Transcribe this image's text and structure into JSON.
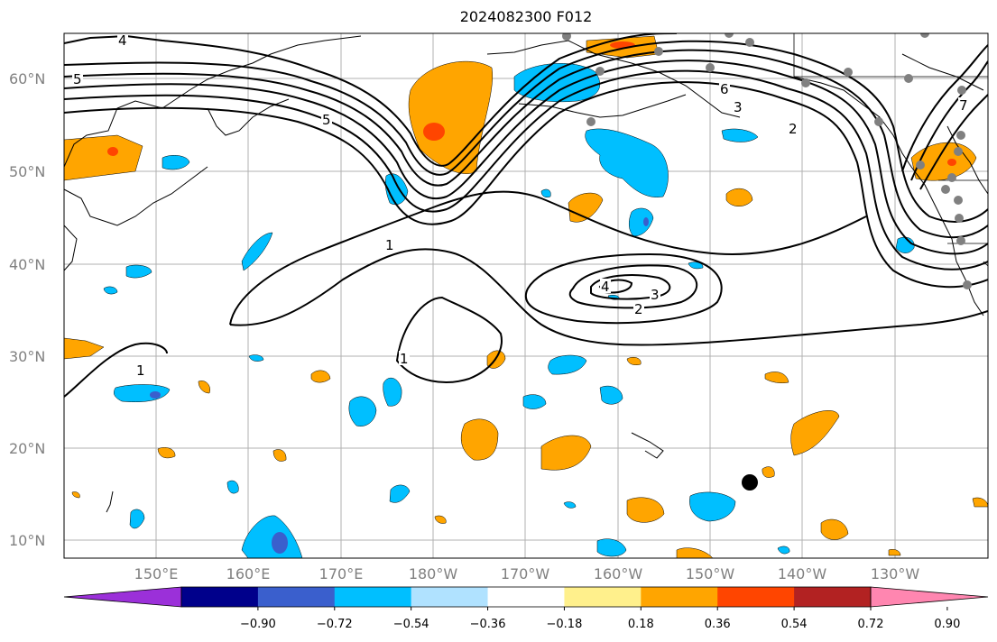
{
  "title": "2024082300 F012",
  "latitude_labels": [
    "60°N",
    "50°N",
    "40°N",
    "30°N",
    "20°N",
    "10°N"
  ],
  "longitude_labels": [
    "150°E",
    "160°E",
    "170°E",
    "180°W",
    "170°W",
    "160°W",
    "150°W",
    "140°W",
    "130°W"
  ],
  "contour_labels": [
    "1",
    "1",
    "1",
    "2",
    "2",
    "3",
    "3",
    "4",
    "4",
    "5",
    "5",
    "6",
    "7"
  ],
  "colorbar": {
    "ticks": [
      "−0.90",
      "−0.72",
      "−0.54",
      "−0.36",
      "−0.18",
      "0.18",
      "0.36",
      "0.54",
      "0.72",
      "0.90"
    ],
    "colors": [
      "#9b30d9",
      "#00008b",
      "#3a5fcd",
      "#00bfff",
      "#b0e2ff",
      "#ffffff",
      "#fff08c",
      "#ffa500",
      "#ff4500",
      "#b22222",
      "#ff86b0"
    ]
  },
  "colors": {
    "positive": "#ffa500",
    "positive_strong": "#ff4500",
    "negative": "#00bfff",
    "negative_strong": "#3a5fcd",
    "station": "#808080",
    "storm_marker": "#000000"
  }
}
